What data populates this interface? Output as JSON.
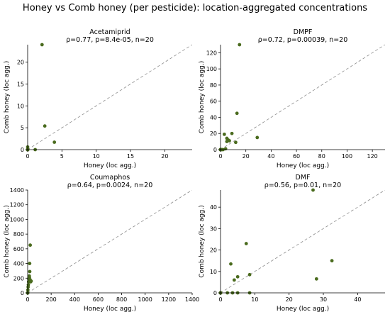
{
  "figure": {
    "suptitle": "Honey vs Comb honey (per pesticide): location-aggregated concentrations",
    "colors": {
      "point": "#4a6b1e",
      "diagonal": "#8c8c8c",
      "axis": "#000000"
    }
  },
  "chart_data": [
    {
      "type": "scatter",
      "title": "Acetamiprid",
      "subtitle": "ρ=0.77, p=8.4e-05, n=20",
      "xlabel": "Honey (loc agg.)",
      "ylabel": "Comb honey (loc agg.)",
      "xlim": [
        0,
        24
      ],
      "ylim": [
        0,
        24
      ],
      "xticks": [
        0,
        5,
        10,
        15,
        20
      ],
      "yticks": [
        0,
        5,
        10,
        15,
        20
      ],
      "diagonal": true,
      "grid": false,
      "x": [
        0,
        0,
        0,
        0,
        0,
        0,
        0,
        0,
        0,
        0,
        0,
        0,
        0,
        0,
        0,
        0,
        1.1,
        2.5,
        3.9,
        2.1
      ],
      "y": [
        0,
        0,
        0,
        0,
        0,
        0,
        0,
        0,
        0,
        0,
        0,
        0,
        0,
        0,
        0,
        0.6,
        0,
        5.4,
        1.7,
        24
      ]
    },
    {
      "type": "scatter",
      "title": "DMPF",
      "subtitle": "ρ=0.72, p=0.00039, n=20",
      "xlabel": "Honey (loc agg.)",
      "ylabel": "Comb honey (loc agg.)",
      "xlim": [
        0,
        130
      ],
      "ylim": [
        0,
        130
      ],
      "xticks": [
        0,
        20,
        40,
        60,
        80,
        100,
        120
      ],
      "yticks": [
        0,
        20,
        40,
        60,
        80,
        100,
        120
      ],
      "diagonal": true,
      "grid": false,
      "x": [
        0,
        0,
        0,
        0,
        0,
        0,
        0,
        1,
        2,
        3,
        4,
        5,
        6,
        5,
        7,
        9,
        12,
        13,
        29,
        15
      ],
      "y": [
        0,
        0,
        0,
        0,
        0,
        0,
        0,
        0,
        0,
        19,
        1,
        10,
        12,
        14,
        11,
        20,
        9,
        45,
        15,
        130
      ]
    },
    {
      "type": "scatter",
      "title": "Coumaphos",
      "subtitle": "ρ=0.64, p=0.0024, n=20",
      "xlabel": "Honey (loc agg.)",
      "ylabel": "Comb honey (loc agg.)",
      "xlim": [
        0,
        1400
      ],
      "ylim": [
        0,
        1400
      ],
      "xticks": [
        0,
        200,
        400,
        600,
        800,
        1000,
        1200,
        1400
      ],
      "yticks": [
        0,
        200,
        400,
        600,
        800,
        1000,
        1200,
        1400
      ],
      "diagonal": true,
      "grid": false,
      "x": [
        0,
        0,
        0,
        0,
        0,
        0,
        2,
        4,
        6,
        8,
        10,
        12,
        14,
        15,
        17,
        18,
        20,
        22,
        25,
        30
      ],
      "y": [
        0,
        0,
        0,
        0,
        0,
        0,
        40,
        80,
        110,
        150,
        185,
        200,
        230,
        210,
        400,
        290,
        180,
        650,
        150,
        160
      ]
    },
    {
      "type": "scatter",
      "title": "DMF",
      "subtitle": "ρ=0.56, p=0.01, n=20",
      "xlabel": "Honey (loc agg.)",
      "ylabel": "Comb honey (loc agg.)",
      "xlim": [
        0,
        48
      ],
      "ylim": [
        0,
        48
      ],
      "xticks": [
        0,
        10,
        20,
        30,
        40
      ],
      "yticks": [
        0,
        10,
        20,
        30,
        40
      ],
      "diagonal": true,
      "grid": false,
      "x": [
        0,
        0,
        0,
        0,
        0,
        0,
        0,
        0,
        2,
        3.5,
        5,
        8.5,
        3,
        4,
        5,
        7.5,
        8.5,
        27,
        28,
        32.5
      ],
      "y": [
        0,
        0,
        0,
        0,
        0,
        0,
        0,
        0,
        0,
        0,
        0,
        0,
        13.5,
        6,
        7.5,
        23,
        8.5,
        48,
        6.5,
        15
      ]
    }
  ]
}
